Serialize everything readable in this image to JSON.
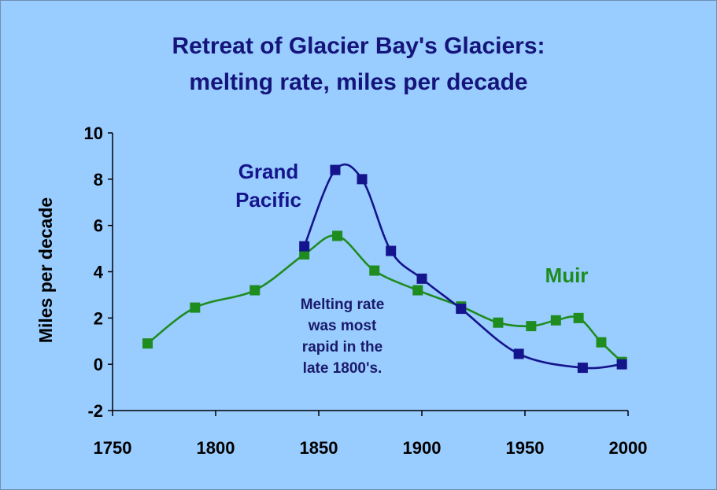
{
  "chart_data": {
    "type": "line",
    "title": [
      "Retreat of Glacier Bay's Glaciers:",
      "melting rate, miles per decade"
    ],
    "ylabel": "Miles per decade",
    "xlim": [
      1750,
      2000
    ],
    "ylim": [
      -2,
      10
    ],
    "x_ticks": [
      "1750",
      "1800",
      "1850",
      "1900",
      "1950",
      "2000"
    ],
    "y_ticks": [
      "10",
      "8",
      "6",
      "4",
      "2",
      "0",
      "-2"
    ],
    "grid": false,
    "series": [
      {
        "name": "Grand Pacific",
        "label_lines": [
          "Grand",
          "Pacific"
        ],
        "color": "#14148c",
        "points": [
          [
            1843,
            5.1
          ],
          [
            1858,
            8.4
          ],
          [
            1871,
            8.0
          ],
          [
            1885,
            4.9
          ],
          [
            1900,
            3.7
          ],
          [
            1919,
            2.4
          ],
          [
            1947,
            0.45
          ],
          [
            1978,
            -0.15
          ],
          [
            1997,
            0.0
          ]
        ]
      },
      {
        "name": "Muir",
        "label_lines": [
          "Muir"
        ],
        "color": "#1f8c1f",
        "points": [
          [
            1767,
            0.9
          ],
          [
            1790,
            2.45
          ],
          [
            1819,
            3.2
          ],
          [
            1843,
            4.75
          ],
          [
            1859,
            5.55
          ],
          [
            1877,
            4.05
          ],
          [
            1898,
            3.2
          ],
          [
            1919,
            2.5
          ],
          [
            1937,
            1.8
          ],
          [
            1953,
            1.65
          ],
          [
            1965,
            1.9
          ],
          [
            1976,
            2.0
          ],
          [
            1987,
            0.95
          ],
          [
            1997,
            0.1
          ]
        ]
      }
    ],
    "annotation": [
      "Melting rate",
      "was most",
      "rapid in the",
      "late 1800's."
    ]
  },
  "colors": {
    "background": "#99ccff",
    "title": "#14147a",
    "grand_pacific": "#14148c",
    "muir": "#1f8c1f"
  }
}
